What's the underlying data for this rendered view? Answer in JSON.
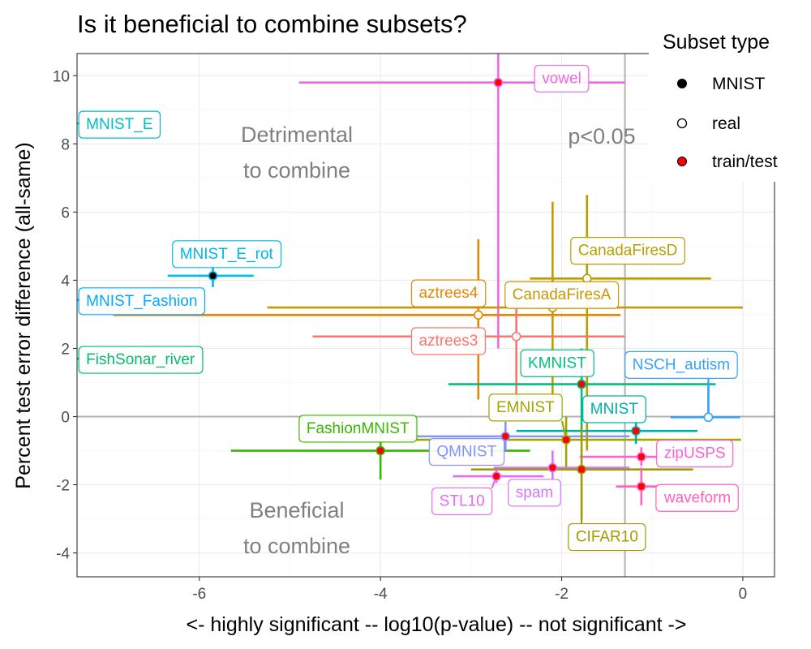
{
  "chart_data": {
    "type": "scatter",
    "title": "Is it beneficial to combine subsets?",
    "xlabel": "<- highly significant -- log10(p-value) -- not significant ->",
    "ylabel": "Percent test error difference (all-same)",
    "xlim": [
      -7.35,
      0.35
    ],
    "ylim": [
      -4.7,
      10.65
    ],
    "xticks": [
      -6,
      -4,
      -2,
      0
    ],
    "xtick_labels": [
      "-6",
      "-4",
      "-2",
      "0"
    ],
    "yticks": [
      -4,
      -2,
      0,
      2,
      4,
      6,
      8,
      10
    ],
    "ytick_labels": [
      "-4",
      "-2",
      "0",
      "2",
      "4",
      "6",
      "8",
      "10"
    ],
    "grid": true,
    "reference_lines": {
      "y": 0,
      "x": -1.301
    },
    "annotations": [
      "Detrimental",
      "to combine",
      "Beneficial",
      "to combine",
      "p<0.05"
    ],
    "legend": {
      "title": "Subset type",
      "position": "right",
      "entries": [
        {
          "label": "MNIST",
          "fill": "#000000"
        },
        {
          "label": "real",
          "fill": "#ffffff"
        },
        {
          "label": "train/test",
          "fill": "#ff0000"
        }
      ]
    },
    "points": [
      {
        "label": "vowel",
        "type": "train/test",
        "color": "#f564e3",
        "x": -2.7,
        "y": 9.8,
        "xmin": -4.9,
        "xmax": -1.3,
        "ymin": 2.0,
        "ymax": 10.65
      },
      {
        "label": "MNIST_E",
        "type": "MNIST",
        "color": "#00bfc4",
        "x": -7.6,
        "y": 8.6,
        "xmin": -7.9,
        "xmax": -7.3,
        "ymin": 8.6,
        "ymax": 8.6
      },
      {
        "label": "MNIST_E_rot",
        "type": "MNIST",
        "color": "#00b8e7",
        "x": -5.85,
        "y": 4.13,
        "xmin": -6.35,
        "xmax": -5.4,
        "ymin": 3.8,
        "ymax": 4.5
      },
      {
        "label": "MNIST_Fashion",
        "type": "MNIST",
        "color": "#00a9ff",
        "x": -7.6,
        "y": 3.42,
        "xmin": -7.9,
        "xmax": -7.3,
        "ymin": 3.42,
        "ymax": 3.42
      },
      {
        "label": "FishSonar_river",
        "type": "real",
        "color": "#00be67",
        "x": -7.6,
        "y": 1.7,
        "xmin": -7.9,
        "xmax": -7.3,
        "ymin": 1.7,
        "ymax": 1.7
      },
      {
        "label": "CanadaFiresD",
        "type": "real",
        "color": "#b79f00",
        "x": -1.72,
        "y": 4.05,
        "xmin": -2.35,
        "xmax": -0.35,
        "ymin": -1.0,
        "ymax": 6.5
      },
      {
        "label": "CanadaFiresA",
        "type": "real",
        "color": "#c49a00",
        "x": -2.1,
        "y": 3.2,
        "xmin": -5.25,
        "xmax": 0.0,
        "ymin": 0.2,
        "ymax": 6.3
      },
      {
        "label": "aztrees4",
        "type": "real",
        "color": "#e58700",
        "x": -2.92,
        "y": 2.98,
        "xmin": -6.95,
        "xmax": -1.35,
        "ymin": 0.5,
        "ymax": 5.2
      },
      {
        "label": "aztrees3",
        "type": "real",
        "color": "#f8766d",
        "x": -2.5,
        "y": 2.35,
        "xmin": -4.75,
        "xmax": -1.3,
        "ymin": 0.2,
        "ymax": 3.5
      },
      {
        "label": "KMNIST",
        "type": "train/test",
        "color": "#00bf7d",
        "x": -1.78,
        "y": 0.95,
        "xmin": -3.25,
        "xmax": -0.3,
        "ymin": -0.5,
        "ymax": 2.0
      },
      {
        "label": "NSCH_autism",
        "type": "real",
        "color": "#35a2ff",
        "x": -0.38,
        "y": -0.02,
        "xmin": -0.8,
        "xmax": -0.03,
        "ymin": -0.02,
        "ymax": 1.0
      },
      {
        "label": "EMNIST",
        "type": "train/test",
        "color": "#a3a500",
        "x": -1.95,
        "y": -0.68,
        "xmin": -3.8,
        "xmax": -0.02,
        "ymin": -1.5,
        "ymax": 0.0
      },
      {
        "label": "MNIST",
        "type": "train/test",
        "color": "#00b0a8",
        "x": -1.18,
        "y": -0.42,
        "xmin": -2.5,
        "xmax": -0.5,
        "ymin": -0.8,
        "ymax": 0.0
      },
      {
        "label": "FashionMNIST",
        "type": "train/test",
        "color": "#39b600",
        "x": -4.0,
        "y": -1.0,
        "xmin": -5.65,
        "xmax": -2.35,
        "ymin": -1.85,
        "ymax": -0.4
      },
      {
        "label": "QMNIST",
        "type": "train/test",
        "color": "#8494ff",
        "x": -2.62,
        "y": -0.58,
        "xmin": -3.6,
        "xmax": -1.25,
        "ymin": -1.0,
        "ymax": -0.15
      },
      {
        "label": "zipUSPS",
        "type": "train/test",
        "color": "#fd61d1",
        "x": -1.12,
        "y": -1.18,
        "xmin": -1.8,
        "xmax": -0.85,
        "ymin": -1.45,
        "ymax": -0.9
      },
      {
        "label": "spam",
        "type": "train/test",
        "color": "#d575fe",
        "x": -2.1,
        "y": -1.5,
        "xmin": -2.75,
        "xmax": -1.25,
        "ymin": -2.0,
        "ymax": -1.0
      },
      {
        "label": "CIFAR10",
        "type": "train/test",
        "color": "#9f9b00",
        "x": -1.78,
        "y": -1.55,
        "xmin": -3.0,
        "xmax": -0.55,
        "ymin": -3.0,
        "ymax": -0.3
      },
      {
        "label": "STL10",
        "type": "train/test",
        "color": "#e76bf3",
        "x": -2.72,
        "y": -1.75,
        "xmin": -3.2,
        "xmax": -2.2,
        "ymin": -1.95,
        "ymax": -1.55
      },
      {
        "label": "waveform",
        "type": "train/test",
        "color": "#ff62bc",
        "x": -1.12,
        "y": -2.05,
        "xmin": -1.4,
        "xmax": -0.85,
        "ymin": -2.6,
        "ymax": -1.5
      }
    ],
    "labels": [
      {
        "text": "vowel",
        "color": "#f564e3",
        "lx": -2.0,
        "ly": 9.95,
        "anchor": "middle"
      },
      {
        "text": "MNIST_E",
        "color": "#00bfc4",
        "lx": -7.25,
        "ly": 8.6,
        "anchor": "start"
      },
      {
        "text": "MNIST_E_rot",
        "color": "#00b8e7",
        "lx": -5.7,
        "ly": 4.8,
        "anchor": "middle"
      },
      {
        "text": "MNIST_Fashion",
        "color": "#00a9ff",
        "lx": -7.25,
        "ly": 3.42,
        "anchor": "start"
      },
      {
        "text": "FishSonar_river",
        "color": "#00be67",
        "lx": -7.25,
        "ly": 1.7,
        "anchor": "start"
      },
      {
        "text": "CanadaFiresD",
        "color": "#b79f00",
        "lx": -1.27,
        "ly": 4.9,
        "anchor": "middle"
      },
      {
        "text": "CanadaFiresA",
        "color": "#c49a00",
        "lx": -2.0,
        "ly": 3.6,
        "anchor": "middle"
      },
      {
        "text": "aztrees4",
        "color": "#e58700",
        "lx": -3.25,
        "ly": 3.65,
        "anchor": "middle"
      },
      {
        "text": "aztrees3",
        "color": "#f8766d",
        "lx": -3.25,
        "ly": 2.25,
        "anchor": "middle"
      },
      {
        "text": "KMNIST",
        "color": "#00bf7d",
        "lx": -2.05,
        "ly": 1.6,
        "anchor": "middle"
      },
      {
        "text": "NSCH_autism",
        "color": "#35a2ff",
        "lx": -0.68,
        "ly": 1.55,
        "anchor": "middle"
      },
      {
        "text": "EMNIST",
        "color": "#a3a500",
        "lx": -2.4,
        "ly": 0.3,
        "anchor": "middle"
      },
      {
        "text": "MNIST",
        "color": "#00b0a8",
        "lx": -1.42,
        "ly": 0.25,
        "anchor": "middle"
      },
      {
        "text": "FashionMNIST",
        "color": "#39b600",
        "lx": -4.25,
        "ly": -0.32,
        "anchor": "middle"
      },
      {
        "text": "QMNIST",
        "color": "#8494ff",
        "lx": -3.05,
        "ly": -1.0,
        "anchor": "middle"
      },
      {
        "text": "zipUSPS",
        "color": "#fd61d1",
        "lx": -0.53,
        "ly": -1.05,
        "anchor": "middle"
      },
      {
        "text": "spam",
        "color": "#d575fe",
        "lx": -2.3,
        "ly": -2.2,
        "anchor": "middle"
      },
      {
        "text": "CIFAR10",
        "color": "#9f9b00",
        "lx": -1.5,
        "ly": -3.5,
        "anchor": "middle"
      },
      {
        "text": "STL10",
        "color": "#e76bf3",
        "lx": -3.1,
        "ly": -2.45,
        "anchor": "middle"
      },
      {
        "text": "waveform",
        "color": "#ff62bc",
        "lx": -0.5,
        "ly": -2.35,
        "anchor": "middle"
      }
    ]
  }
}
